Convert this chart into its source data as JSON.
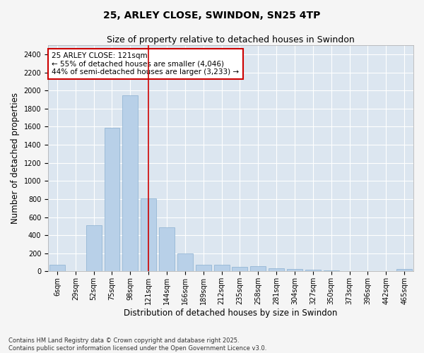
{
  "title": "25, ARLEY CLOSE, SWINDON, SN25 4TP",
  "subtitle": "Size of property relative to detached houses in Swindon",
  "xlabel": "Distribution of detached houses by size in Swindon",
  "ylabel": "Number of detached properties",
  "categories": [
    "6sqm",
    "29sqm",
    "52sqm",
    "75sqm",
    "98sqm",
    "121sqm",
    "144sqm",
    "166sqm",
    "189sqm",
    "212sqm",
    "235sqm",
    "258sqm",
    "281sqm",
    "304sqm",
    "327sqm",
    "350sqm",
    "373sqm",
    "396sqm",
    "442sqm",
    "465sqm"
  ],
  "values": [
    75,
    0,
    510,
    1590,
    1950,
    810,
    490,
    200,
    75,
    75,
    50,
    55,
    35,
    30,
    20,
    12,
    5,
    3,
    2,
    30
  ],
  "bar_color": "#b8d0e8",
  "bar_edge_color": "#8ab0d0",
  "vline_x_index": 5,
  "vline_color": "#cc0000",
  "annotation_box_text": "25 ARLEY CLOSE: 121sqm\n← 55% of detached houses are smaller (4,046)\n44% of semi-detached houses are larger (3,233) →",
  "annotation_box_color": "#cc0000",
  "annotation_box_bg": "#ffffff",
  "ylim": [
    0,
    2500
  ],
  "yticks": [
    0,
    200,
    400,
    600,
    800,
    1000,
    1200,
    1400,
    1600,
    1800,
    2000,
    2200,
    2400
  ],
  "bg_color": "#dce6f0",
  "plot_bg_color": "#dce6f0",
  "fig_bg_color": "#f5f5f5",
  "grid_color": "#ffffff",
  "footer": "Contains HM Land Registry data © Crown copyright and database right 2025.\nContains public sector information licensed under the Open Government Licence v3.0.",
  "title_fontsize": 10,
  "subtitle_fontsize": 9,
  "axis_label_fontsize": 8.5,
  "tick_fontsize": 7,
  "annotation_fontsize": 7.5,
  "footer_fontsize": 6
}
